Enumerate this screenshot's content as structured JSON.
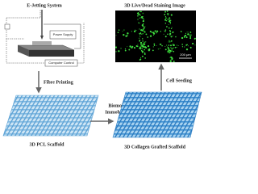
{
  "title": "E-Jetting System",
  "apparatus": {
    "power_supply": "Power Supply",
    "computer_control": "Computer Control"
  },
  "steps": {
    "fibre_printing": "Fibre Printing",
    "biomolecule": [
      "Biomolecule",
      "Immobilization"
    ],
    "cell_seeding": "Cell Seeding"
  },
  "nodes": [
    {
      "label": "3D PCL Scaffold"
    },
    {
      "label": "3D Collagen Grafted Scaffold"
    },
    {
      "label": "3D Live/Dead Staining Image"
    }
  ],
  "scale_bar": "200 μm"
}
